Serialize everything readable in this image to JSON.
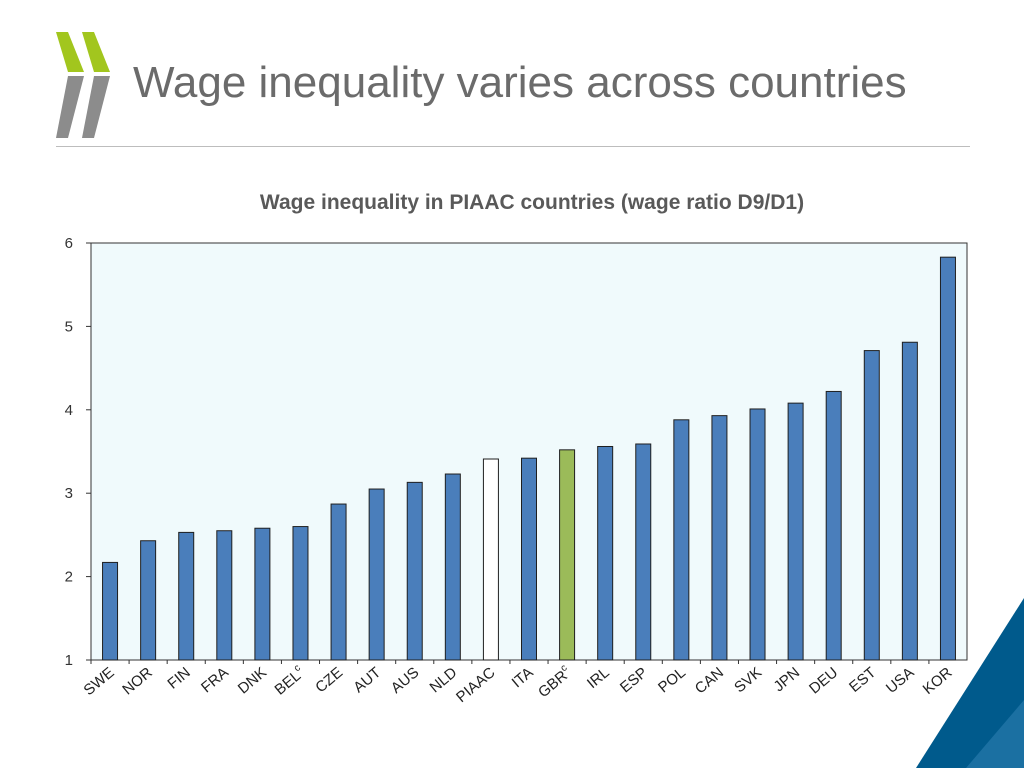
{
  "slide": {
    "title": "Wage inequality varies across countries"
  },
  "colors": {
    "bar": "#4a7ebb",
    "highlight": "#9bbb59",
    "average": "#ffffff",
    "plot_bg": "#f0fafc",
    "logo_green": "#a2c61e",
    "logo_gray": "#8c8c8c",
    "corner_blue": "#005a8c"
  },
  "chart_data": {
    "type": "bar",
    "title": "Wage inequality in PIAAC countries (wage ratio D9/D1)",
    "xlabel": "",
    "ylabel": "",
    "ylim": [
      1,
      6
    ],
    "yticks": [
      "1",
      "2",
      "3",
      "4",
      "5",
      "6"
    ],
    "categories": [
      "SWE",
      "NOR",
      "FIN",
      "FRA",
      "DNK",
      "BEL",
      "CZE",
      "AUT",
      "AUS",
      "NLD",
      "PIAAC",
      "ITA",
      "GBR",
      "IRL",
      "ESP",
      "POL",
      "CAN",
      "SVK",
      "JPN",
      "DEU",
      "EST",
      "USA",
      "KOR"
    ],
    "superscripts": [
      "",
      "",
      "",
      "",
      "",
      "c",
      "",
      "",
      "",
      "",
      "",
      "",
      "c",
      "",
      "",
      "",
      "",
      "",
      "",
      "",
      "",
      "",
      ""
    ],
    "values": [
      2.17,
      2.43,
      2.53,
      2.55,
      2.58,
      2.6,
      2.87,
      3.05,
      3.13,
      3.23,
      3.41,
      3.42,
      3.52,
      3.56,
      3.59,
      3.88,
      3.93,
      4.01,
      4.08,
      4.22,
      4.71,
      4.81,
      5.83
    ],
    "bar_styles": [
      "normal",
      "normal",
      "normal",
      "normal",
      "normal",
      "normal",
      "normal",
      "normal",
      "normal",
      "normal",
      "average",
      "normal",
      "highlight",
      "normal",
      "normal",
      "normal",
      "normal",
      "normal",
      "normal",
      "normal",
      "normal",
      "normal",
      "normal"
    ]
  }
}
